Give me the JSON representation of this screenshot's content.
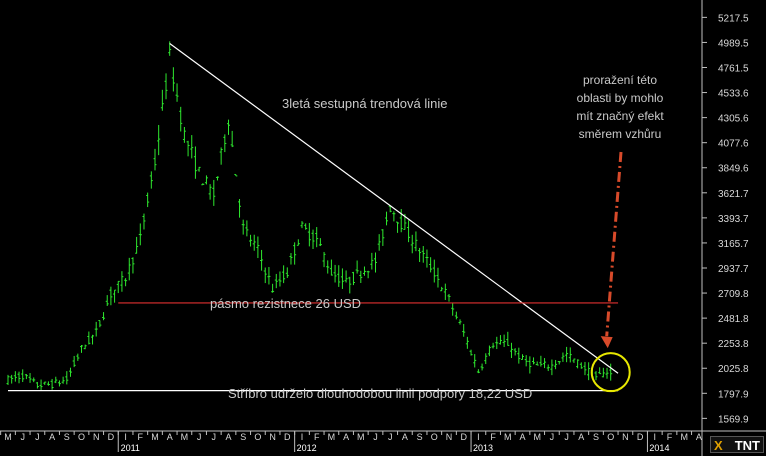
{
  "chart_data": {
    "type": "ohlc",
    "y_ticks": [
      "5217.5",
      "4989.5",
      "4761.5",
      "4533.6",
      "4305.6",
      "4077.6",
      "3849.6",
      "3621.7",
      "3393.7",
      "3165.7",
      "2937.7",
      "2709.8",
      "2481.8",
      "2253.8",
      "2025.8",
      "1797.9",
      "1569.9"
    ],
    "ylim": [
      1455,
      5330
    ],
    "month_labels": [
      "M",
      "J",
      "J",
      "A",
      "S",
      "O",
      "N",
      "D",
      "I",
      "F",
      "M",
      "A",
      "M",
      "J",
      "J",
      "A",
      "S",
      "O",
      "N",
      "D",
      "I",
      "F",
      "M",
      "A",
      "M",
      "J",
      "J",
      "A",
      "S",
      "O",
      "N",
      "D",
      "I",
      "F",
      "M",
      "A",
      "M",
      "J",
      "J",
      "A",
      "S",
      "O",
      "N",
      "D",
      "I",
      "F",
      "M",
      "A",
      "M",
      "J",
      "J",
      "A",
      "S",
      "O"
    ],
    "year_labels": [
      {
        "label": "2011",
        "month_index": 8
      },
      {
        "label": "2012",
        "month_index": 20
      },
      {
        "label": "2013",
        "month_index": 32
      },
      {
        "label": "2014",
        "month_index": 44
      }
    ],
    "series": {
      "anchors": [
        [
          0,
          1920
        ],
        [
          1,
          1960
        ],
        [
          2,
          1870
        ],
        [
          3,
          1880
        ],
        [
          4,
          1920
        ],
        [
          5,
          2200
        ],
        [
          6,
          2350
        ],
        [
          7,
          2700
        ],
        [
          8,
          2850
        ],
        [
          9,
          3200
        ],
        [
          10,
          3900
        ],
        [
          11,
          4850
        ],
        [
          12,
          4150
        ],
        [
          13,
          3800
        ],
        [
          14,
          3600
        ],
        [
          15,
          4300
        ],
        [
          16,
          3300
        ],
        [
          17,
          3100
        ],
        [
          18,
          2750
        ],
        [
          19,
          2900
        ],
        [
          20,
          3300
        ],
        [
          21,
          3200
        ],
        [
          22,
          2900
        ],
        [
          23,
          2800
        ],
        [
          24,
          2900
        ],
        [
          25,
          3000
        ],
        [
          26,
          3500
        ],
        [
          27,
          3300
        ],
        [
          28,
          3100
        ],
        [
          29,
          2900
        ],
        [
          30,
          2650
        ],
        [
          31,
          2350
        ],
        [
          32,
          2000
        ],
        [
          33,
          2250
        ],
        [
          34,
          2250
        ],
        [
          35,
          2100
        ],
        [
          36,
          2050
        ],
        [
          37,
          2050
        ],
        [
          38,
          2150
        ],
        [
          39,
          2050
        ],
        [
          40,
          1950
        ],
        [
          41,
          2000
        ]
      ]
    },
    "lines": [
      {
        "name": "trend",
        "color": "#ffffff",
        "from": [
          11,
          4980
        ],
        "to": [
          41.5,
          1980
        ]
      },
      {
        "name": "resistance",
        "color": "#e03030",
        "from": [
          7.5,
          2620
        ],
        "to": [
          41.5,
          2620
        ]
      },
      {
        "name": "support",
        "color": "#ffffff",
        "from": [
          0,
          1822
        ],
        "to": [
          41.5,
          1822
        ]
      }
    ],
    "annotations": {
      "trend": "3letá sestupná trendová linie",
      "resistance": "pásmo rezistnece 26 USD",
      "support": "Stříbro udrželo dlouhodobou linii podpory 18,22 USD",
      "breakout": [
        "proražení této",
        "oblasti by mohlo",
        "mít značný efekt",
        "směrem vzhůru"
      ]
    },
    "colors": {
      "bars": "#2ee82e",
      "background": "#000000",
      "trend": "#ffffff",
      "resistance": "#e03030",
      "support": "#ffffff",
      "arrow": "#d84a2a",
      "circle": "#e8e800"
    }
  },
  "logo": {
    "text": "TNT",
    "mark": "X"
  }
}
